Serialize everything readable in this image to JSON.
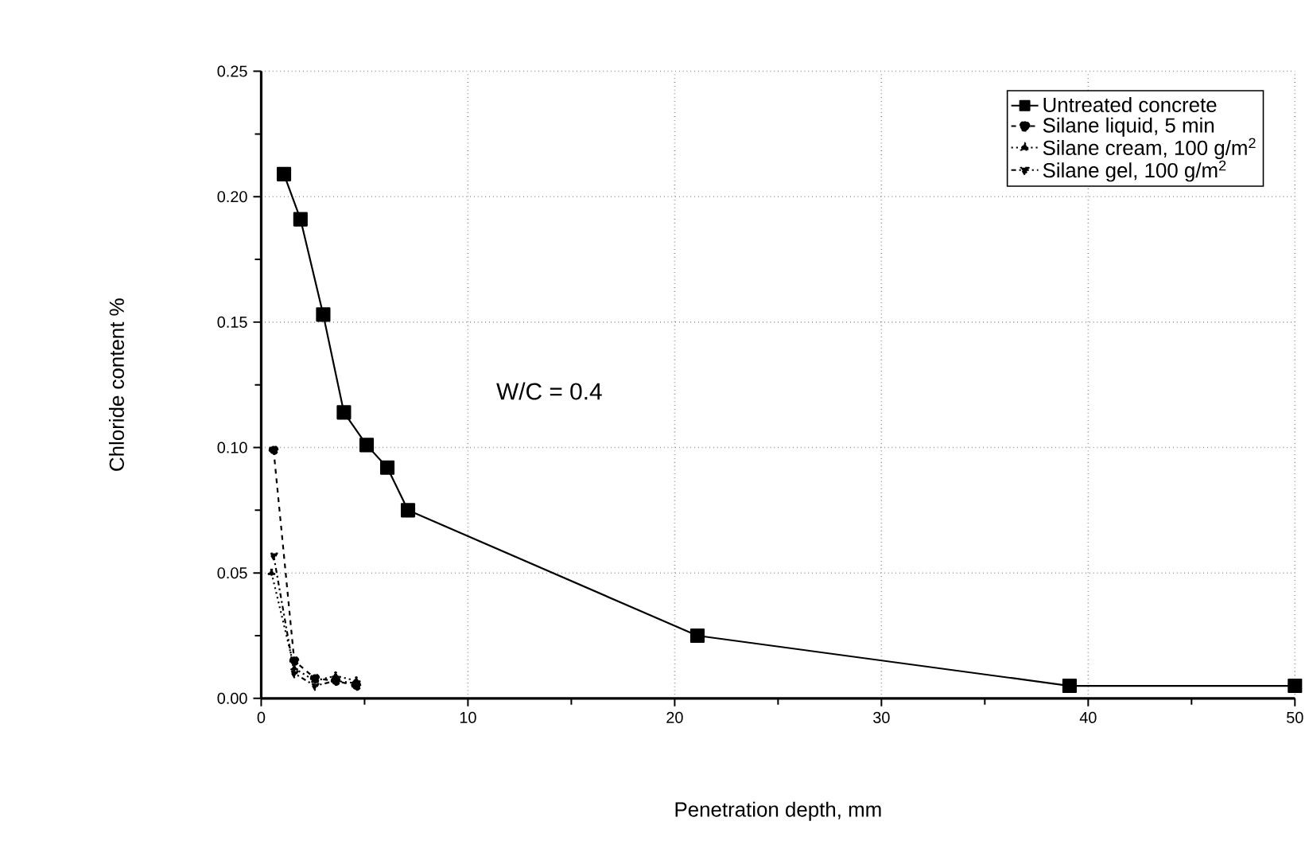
{
  "chart_data": {
    "type": "line",
    "xlabel": "Penetration depth, mm",
    "ylabel": "Chloride content  %",
    "annotations": [
      "W/C = 0.4"
    ],
    "xlim": [
      0,
      50
    ],
    "xticks": [
      0,
      10,
      20,
      30,
      40,
      50
    ],
    "ylim": [
      0,
      0.25
    ],
    "yticks": [
      {
        "value": 0,
        "label": "0.00"
      },
      {
        "value": 0.05,
        "label": "0.05"
      },
      {
        "value": 0.1,
        "label": "0.10"
      },
      {
        "value": 0.15,
        "label": "0.15"
      },
      {
        "value": 0.2,
        "label": "0.20"
      },
      {
        "value": 0.25,
        "label": "0.25"
      }
    ],
    "grid": true,
    "legend": "top right",
    "series": [
      {
        "name": "Untreated concrete",
        "color": "#000000",
        "marker": "square",
        "line_style": "solid",
        "x": [
          1.1,
          1.9,
          3.0,
          4.0,
          5.1,
          6.1,
          7.1,
          21.1,
          39.1,
          50
        ],
        "values": [
          0.209,
          0.191,
          0.153,
          0.114,
          0.101,
          0.092,
          0.075,
          0.025,
          0.005,
          0.005
        ]
      },
      {
        "name": "Silane liquid, 5 min",
        "color": "#000000",
        "marker": "circle",
        "line_style": "dashed",
        "x": [
          0.6,
          1.6,
          2.6,
          3.6,
          4.6
        ],
        "values": [
          0.099,
          0.015,
          0.008,
          0.007,
          0.005
        ]
      },
      {
        "name": "Silane cream, 100 g/m$^{2}$",
        "color": "#000000",
        "marker": "triangle",
        "line_style": "dotted",
        "x": [
          0.5,
          1.6,
          2.6,
          3.6,
          4.6
        ],
        "values": [
          0.05,
          0.012,
          0.007,
          0.009,
          0.007
        ]
      },
      {
        "name": "Silane gel, 100 g/m$^{2}$",
        "color": "#000000",
        "marker": "triangle-down",
        "line_style": "dashdotted",
        "x": [
          0.6,
          1.6,
          2.6,
          3.6,
          4.6
        ],
        "values": [
          0.057,
          0.01,
          0.005,
          0.007,
          0.006
        ]
      }
    ]
  }
}
